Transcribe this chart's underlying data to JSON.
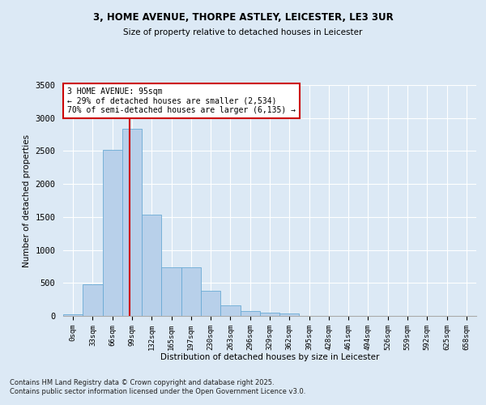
{
  "title_line1": "3, HOME AVENUE, THORPE ASTLEY, LEICESTER, LE3 3UR",
  "title_line2": "Size of property relative to detached houses in Leicester",
  "xlabel": "Distribution of detached houses by size in Leicester",
  "ylabel": "Number of detached properties",
  "bar_labels": [
    "0sqm",
    "33sqm",
    "66sqm",
    "99sqm",
    "132sqm",
    "165sqm",
    "197sqm",
    "230sqm",
    "263sqm",
    "296sqm",
    "329sqm",
    "362sqm",
    "395sqm",
    "428sqm",
    "461sqm",
    "494sqm",
    "526sqm",
    "559sqm",
    "592sqm",
    "625sqm",
    "658sqm"
  ],
  "bar_values": [
    20,
    480,
    2520,
    2840,
    1530,
    740,
    740,
    380,
    155,
    70,
    55,
    35,
    0,
    0,
    0,
    0,
    0,
    0,
    0,
    0,
    0
  ],
  "bar_color": "#b8d0ea",
  "bar_edge_color": "#6aaad4",
  "vline_x_index": 2.88,
  "annotation_text": "3 HOME AVENUE: 95sqm\n← 29% of detached houses are smaller (2,534)\n70% of semi-detached houses are larger (6,135) →",
  "annotation_box_color": "#ffffff",
  "annotation_border_color": "#cc0000",
  "vline_color": "#cc0000",
  "ylim": [
    0,
    3500
  ],
  "yticks": [
    0,
    500,
    1000,
    1500,
    2000,
    2500,
    3000,
    3500
  ],
  "background_color": "#dce9f5",
  "grid_color": "#ffffff",
  "footer_line1": "Contains HM Land Registry data © Crown copyright and database right 2025.",
  "footer_line2": "Contains public sector information licensed under the Open Government Licence v3.0."
}
